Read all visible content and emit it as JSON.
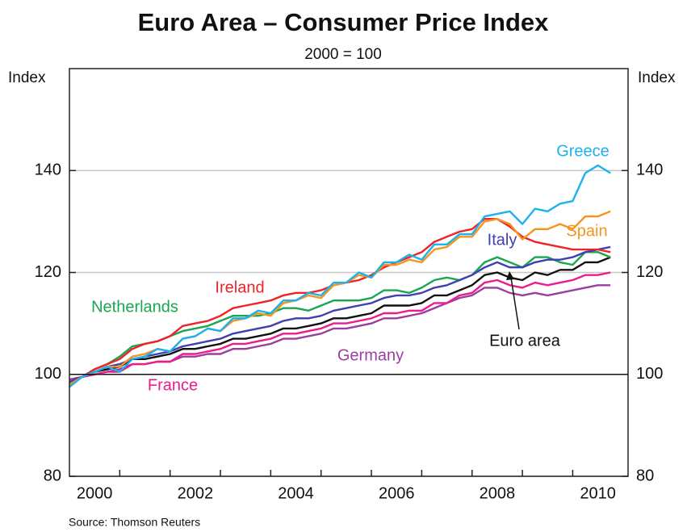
{
  "chart_data": {
    "type": "line",
    "title": "Euro Area – Consumer Price Index",
    "subtitle": "2000 = 100",
    "ylabel": "Index",
    "y2label": "Index",
    "source": "Source: Thomson Reuters",
    "xlim": [
      2000,
      2011.1
    ],
    "xticks": [
      {
        "value": 2000.5,
        "label": "2000"
      },
      {
        "value": 2002.5,
        "label": "2002"
      },
      {
        "value": 2004.5,
        "label": "2004"
      },
      {
        "value": 2006.5,
        "label": "2006"
      },
      {
        "value": 2008.5,
        "label": "2008"
      },
      {
        "value": 2010.5,
        "label": "2010"
      }
    ],
    "xminorticks": [
      2001,
      2002,
      2003,
      2004,
      2005,
      2006,
      2007,
      2008,
      2009,
      2010
    ],
    "ylim": [
      80,
      160
    ],
    "yticks": [
      80,
      100,
      120,
      140
    ],
    "grid": true,
    "reference_line": 100,
    "x": [
      2000,
      2000.25,
      2000.5,
      2000.75,
      2001,
      2001.25,
      2001.5,
      2001.75,
      2002,
      2002.25,
      2002.5,
      2002.75,
      2003,
      2003.25,
      2003.5,
      2003.75,
      2004,
      2004.25,
      2004.5,
      2004.75,
      2005,
      2005.25,
      2005.5,
      2005.75,
      2006,
      2006.25,
      2006.5,
      2006.75,
      2007,
      2007.25,
      2007.5,
      2007.75,
      2008,
      2008.25,
      2008.5,
      2008.75,
      2009,
      2009.25,
      2009.5,
      2009.75,
      2010,
      2010.25,
      2010.5,
      2010.75
    ],
    "series": [
      {
        "name": "Germany",
        "color": "#9b3ea1",
        "values": [
          99,
          99.5,
          100,
          100.5,
          101,
          102,
          102,
          102.5,
          102.5,
          103.5,
          103.5,
          104,
          104,
          105,
          105,
          105.5,
          106,
          107,
          107,
          107.5,
          108,
          109,
          109,
          109.5,
          110,
          111,
          111,
          111.5,
          112,
          113,
          114,
          115,
          115.5,
          117,
          117,
          116,
          115.5,
          116,
          115.5,
          116,
          116.5,
          117,
          117.5,
          117.5
        ]
      },
      {
        "name": "France",
        "color": "#ec1c8c",
        "values": [
          98.5,
          99.5,
          100,
          100.5,
          100.5,
          102,
          102,
          102.5,
          102.5,
          104,
          104,
          104.5,
          105,
          106,
          106,
          106.5,
          107,
          108,
          108,
          108.5,
          109,
          110,
          110,
          110.5,
          111,
          112,
          112,
          112.5,
          112.5,
          114,
          114,
          115.5,
          116,
          118,
          118.5,
          117.5,
          117,
          118,
          117.5,
          118,
          118.5,
          119.5,
          119.5,
          120
        ]
      },
      {
        "name": "Euro area",
        "color": "#111111",
        "values": [
          98.5,
          99.5,
          100.5,
          101,
          101.5,
          103,
          103,
          103.5,
          104,
          105,
          105,
          105.5,
          106,
          107,
          107,
          107.5,
          108,
          109,
          109,
          109.5,
          110,
          111,
          111,
          111.5,
          112,
          113.5,
          113.5,
          113.5,
          114,
          115.5,
          115.5,
          116.5,
          117.5,
          119.5,
          120,
          119,
          118.5,
          120,
          119.5,
          120.5,
          120.5,
          122,
          122,
          123
        ]
      },
      {
        "name": "Netherlands",
        "color": "#1aa650",
        "values": [
          98,
          99.5,
          101,
          102,
          103.5,
          105.5,
          106,
          106.5,
          107.5,
          108.5,
          109,
          109.5,
          110.5,
          111.5,
          111.5,
          111.5,
          112,
          113,
          113,
          112.5,
          113.5,
          114.5,
          114.5,
          114.5,
          115,
          116.5,
          116.5,
          116,
          117,
          118.5,
          119,
          118.5,
          119.5,
          122,
          123,
          122,
          121,
          123,
          123,
          122,
          121.5,
          124,
          124,
          123
        ]
      },
      {
        "name": "Italy",
        "color": "#3f3fb3",
        "values": [
          98.5,
          99.5,
          100.5,
          101.5,
          102,
          103,
          103.5,
          104,
          104.5,
          105.5,
          106,
          106.5,
          107,
          108,
          108.5,
          109,
          109.5,
          110.5,
          111,
          111,
          111.5,
          112.5,
          113,
          113.5,
          114,
          115,
          115.5,
          115.5,
          116,
          117,
          117.5,
          118.5,
          119.5,
          121,
          122,
          121,
          121,
          122,
          122.5,
          122.5,
          123,
          124,
          124.5,
          125
        ]
      },
      {
        "name": "Ireland",
        "color": "#ee2326",
        "values": [
          98,
          99.5,
          101,
          102,
          103,
          105,
          106,
          106.5,
          107.5,
          109.5,
          110,
          110.5,
          111.5,
          113,
          113.5,
          114,
          114.5,
          115.5,
          116,
          116,
          116.5,
          117.5,
          118,
          118.5,
          119.5,
          121,
          122,
          123,
          124,
          126,
          127,
          128,
          128.5,
          130.5,
          130.5,
          129,
          127,
          126,
          125.5,
          125,
          124.5,
          124.5,
          124.5,
          124
        ]
      },
      {
        "name": "Spain",
        "color": "#f7941d",
        "values": [
          98,
          99.5,
          100.5,
          101.5,
          101.5,
          103.5,
          104,
          105,
          104.5,
          107,
          107.5,
          109,
          108.5,
          110.5,
          111,
          112,
          111.5,
          114,
          114.5,
          115.5,
          115,
          117.5,
          118,
          119.5,
          119,
          121.5,
          121.5,
          122.5,
          122,
          124.5,
          125,
          127,
          127,
          130,
          130.5,
          129.5,
          126.5,
          128.5,
          128.5,
          129.5,
          128.5,
          131,
          131,
          132
        ]
      },
      {
        "name": "Greece",
        "color": "#1ab2ef",
        "values": [
          97.5,
          99.5,
          100.5,
          101.5,
          100.5,
          103,
          103.5,
          105,
          104.5,
          107,
          107.5,
          109,
          108.5,
          111,
          111,
          112.5,
          112,
          114.5,
          114.5,
          116,
          115.5,
          118,
          118,
          120,
          119,
          122,
          122,
          123.5,
          122.5,
          125.5,
          125.5,
          127.5,
          127.5,
          131,
          131.5,
          132,
          129.5,
          132.5,
          132,
          133.5,
          134,
          139.5,
          141,
          139.5
        ]
      }
    ]
  }
}
